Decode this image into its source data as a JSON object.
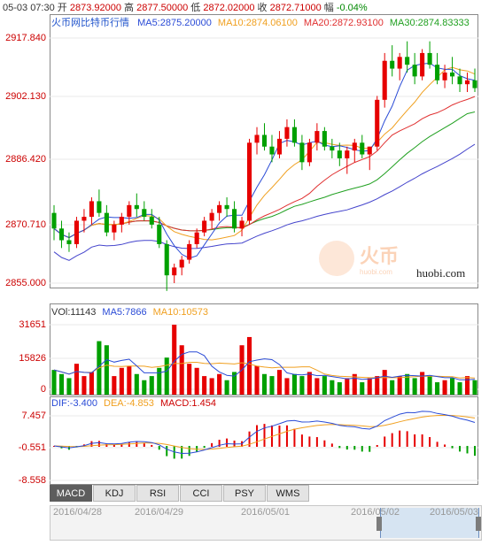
{
  "header": {
    "time": "05-03 07:30",
    "open_label": "开",
    "open": "2873.92000",
    "high_label": "高",
    "high": "2877.50000",
    "low_label": "低",
    "low": "2872.02000",
    "close_label": "收",
    "close": "2872.71000",
    "change_label": "幅",
    "change": "-0.04%"
  },
  "main_legend": {
    "title": "火币网比特币行情",
    "ma5": "MA5:2875.20000",
    "ma10": "MA10:2874.06100",
    "ma20": "MA20:2872.93100",
    "ma30": "MA30:2874.83333"
  },
  "price_axis": [
    "2917.840",
    "2902.130",
    "2886.420",
    "2870.710",
    "2855.000"
  ],
  "watermark": {
    "brand": "火币",
    "sub": "huobi.com",
    "url": "huobi.com"
  },
  "volume_legend": {
    "vol": "VOl:11143",
    "ma5": "MA5:7866",
    "ma10": "MA10:10573"
  },
  "volume_axis": [
    "31651",
    "15826",
    "0"
  ],
  "macd_legend": {
    "dif": "DIF:-3.400",
    "dea": "DEA:-4.853",
    "macd": "MACD:1.454"
  },
  "macd_axis": [
    "7.457",
    "-0.551",
    "-8.558"
  ],
  "tabs": [
    "MACD",
    "KDJ",
    "RSI",
    "CCI",
    "PSY",
    "WMS"
  ],
  "timeline": [
    "2016/04/28",
    "2016/04/29",
    "2016/05/01",
    "2016/05/02",
    "2016/05/03"
  ],
  "colors": {
    "up": "#e60000",
    "down": "#00a000",
    "ma5": "#2a4bd6",
    "ma10": "#f0a020",
    "ma20": "#e03030",
    "ma30": "#20a020",
    "long": "#4444cc",
    "axis": "#cc0000"
  },
  "chart_data": {
    "type": "candlestick",
    "ylim": [
      2855.0,
      2917.84
    ],
    "candles": [
      [
        2873,
        2875,
        2866,
        2869
      ],
      [
        2869,
        2871,
        2864,
        2866
      ],
      [
        2866,
        2868,
        2863,
        2865
      ],
      [
        2865,
        2872,
        2864,
        2871
      ],
      [
        2871,
        2874,
        2868,
        2872
      ],
      [
        2872,
        2877,
        2870,
        2876
      ],
      [
        2876,
        2879,
        2872,
        2873
      ],
      [
        2873,
        2875,
        2867,
        2868
      ],
      [
        2868,
        2871,
        2866,
        2870
      ],
      [
        2870,
        2873,
        2868,
        2872
      ],
      [
        2872,
        2876,
        2870,
        2875
      ],
      [
        2875,
        2878,
        2872,
        2874
      ],
      [
        2874,
        2876,
        2871,
        2872
      ],
      [
        2872,
        2874,
        2869,
        2870
      ],
      [
        2870,
        2872,
        2864,
        2865
      ],
      [
        2865,
        2866,
        2853,
        2857
      ],
      [
        2857,
        2860,
        2855,
        2859
      ],
      [
        2859,
        2862,
        2857,
        2861
      ],
      [
        2861,
        2866,
        2860,
        2865
      ],
      [
        2865,
        2869,
        2864,
        2868
      ],
      [
        2868,
        2872,
        2867,
        2871
      ],
      [
        2871,
        2874,
        2869,
        2873
      ],
      [
        2873,
        2876,
        2871,
        2875
      ],
      [
        2875,
        2877,
        2872,
        2874
      ],
      [
        2874,
        2876,
        2868,
        2869
      ],
      [
        2869,
        2872,
        2867,
        2871
      ],
      [
        2871,
        2892,
        2870,
        2891
      ],
      [
        2891,
        2895,
        2888,
        2893
      ],
      [
        2893,
        2896,
        2889,
        2890
      ],
      [
        2890,
        2893,
        2886,
        2888
      ],
      [
        2888,
        2894,
        2887,
        2892
      ],
      [
        2892,
        2897,
        2890,
        2895
      ],
      [
        2895,
        2897,
        2890,
        2891
      ],
      [
        2891,
        2893,
        2884,
        2886
      ],
      [
        2886,
        2892,
        2885,
        2891
      ],
      [
        2891,
        2896,
        2889,
        2894
      ],
      [
        2894,
        2895,
        2889,
        2890
      ],
      [
        2890,
        2892,
        2887,
        2889
      ],
      [
        2889,
        2891,
        2885,
        2887
      ],
      [
        2887,
        2890,
        2883,
        2889
      ],
      [
        2889,
        2892,
        2886,
        2891
      ],
      [
        2891,
        2893,
        2887,
        2888
      ],
      [
        2888,
        2890,
        2884,
        2890
      ],
      [
        2890,
        2903,
        2889,
        2902
      ],
      [
        2902,
        2914,
        2900,
        2912
      ],
      [
        2912,
        2916,
        2908,
        2910
      ],
      [
        2910,
        2914,
        2907,
        2913
      ],
      [
        2913,
        2917,
        2909,
        2911
      ],
      [
        2911,
        2914,
        2906,
        2908
      ],
      [
        2908,
        2915,
        2907,
        2914
      ],
      [
        2914,
        2917,
        2910,
        2911
      ],
      [
        2911,
        2914,
        2906,
        2907
      ],
      [
        2907,
        2911,
        2905,
        2909
      ],
      [
        2909,
        2913,
        2906,
        2908
      ],
      [
        2908,
        2910,
        2904,
        2906
      ],
      [
        2906,
        2909,
        2904,
        2907
      ],
      [
        2907,
        2910,
        2904,
        2905
      ]
    ],
    "volume": [
      12,
      10,
      8,
      15,
      9,
      11,
      26,
      24,
      9,
      13,
      14,
      10,
      7,
      9,
      13,
      18,
      34,
      24,
      15,
      13,
      9,
      8,
      10,
      7,
      11,
      24,
      28,
      14,
      10,
      9,
      12,
      8,
      10,
      9,
      11,
      8,
      9,
      7,
      6,
      8,
      10,
      6,
      8,
      9,
      12,
      7,
      9,
      10,
      8,
      11,
      9,
      6,
      7,
      8,
      6,
      9,
      7
    ],
    "volume_ylim": [
      0,
      31651
    ],
    "macd_ylim": [
      -8.558,
      7.457
    ]
  }
}
